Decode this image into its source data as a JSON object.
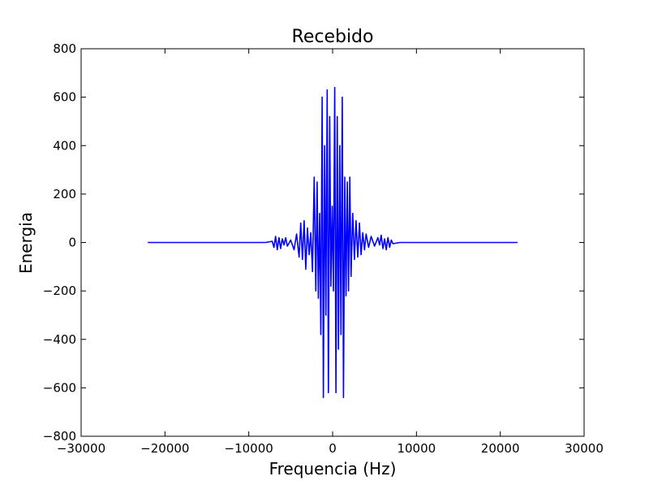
{
  "chart_data": {
    "type": "line",
    "title": "Recebido",
    "xlabel": "Frequencia (Hz)",
    "ylabel": "Energia",
    "xlim": [
      -30000,
      30000
    ],
    "ylim": [
      -800,
      800
    ],
    "x_ticks": [
      -30000,
      -20000,
      -10000,
      0,
      10000,
      20000,
      30000
    ],
    "x_tick_labels": [
      "−30000",
      "−20000",
      "−10000",
      "0",
      "10000",
      "20000",
      "30000"
    ],
    "y_ticks": [
      800,
      600,
      400,
      200,
      0,
      -200,
      -400,
      -600,
      -800
    ],
    "y_tick_labels": [
      "800",
      "600",
      "400",
      "200",
      "0",
      "−200",
      "−400",
      "−600",
      "−800"
    ],
    "grid": false,
    "series": [
      {
        "color": "#0000ff",
        "x": [
          -22050,
          -15000,
          -8000,
          -7200,
          -7000,
          -6800,
          -6600,
          -6400,
          -6200,
          -6000,
          -5800,
          -5600,
          -5400,
          -5000,
          -4600,
          -4300,
          -4000,
          -3800,
          -3600,
          -3400,
          -3200,
          -3000,
          -2800,
          -2600,
          -2400,
          -2200,
          -2000,
          -1850,
          -1700,
          -1550,
          -1400,
          -1250,
          -1100,
          -950,
          -800,
          -650,
          -500,
          -350,
          -200,
          -50,
          100,
          250,
          400,
          550,
          700,
          850,
          1000,
          1150,
          1300,
          1450,
          1600,
          1750,
          1900,
          2050,
          2200,
          2400,
          2600,
          2800,
          3000,
          3200,
          3400,
          3600,
          3800,
          4000,
          4300,
          4600,
          5000,
          5400,
          5600,
          5800,
          6000,
          6200,
          6400,
          6600,
          6800,
          7000,
          7200,
          8000,
          15000,
          22050
        ],
        "y": [
          0,
          0,
          0,
          5,
          -20,
          25,
          -30,
          20,
          -25,
          15,
          -10,
          20,
          -15,
          10,
          -30,
          35,
          -60,
          80,
          -70,
          90,
          -110,
          60,
          -50,
          40,
          -120,
          270,
          -200,
          250,
          -230,
          120,
          -380,
          600,
          -640,
          400,
          -300,
          630,
          -620,
          520,
          -180,
          150,
          -200,
          640,
          -620,
          520,
          -440,
          400,
          -380,
          600,
          -640,
          270,
          -220,
          250,
          -200,
          270,
          -140,
          120,
          -70,
          90,
          -60,
          80,
          -50,
          40,
          -30,
          35,
          -20,
          25,
          -15,
          20,
          -10,
          30,
          -25,
          15,
          -30,
          20,
          -20,
          10,
          -5,
          0,
          0,
          0
        ]
      }
    ]
  }
}
